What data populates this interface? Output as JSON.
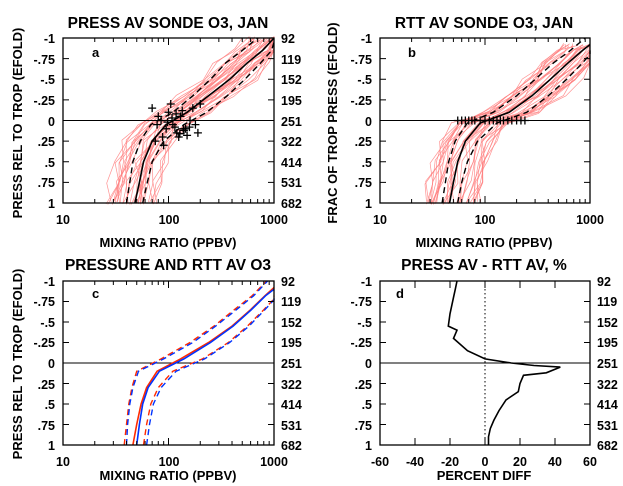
{
  "chart_data": [
    {
      "id": "a",
      "type": "line",
      "title": "PRESS AV SONDE O3, JAN",
      "panel_label": "a",
      "xlabel": "MIXING RATIO (PPBV)",
      "ylabel": "PRESS REL TO TROP (EFOLD)",
      "x_scale": "log",
      "xlim": [
        10,
        1000
      ],
      "ylim": [
        -1,
        1
      ],
      "y_reversed": true,
      "x_tick_labels": [
        "10",
        "100",
        "1000"
      ],
      "y_tick_labels": [
        "-1",
        "-.75",
        "-.5",
        "-.25",
        "0",
        ".25",
        ".5",
        ".75",
        "1"
      ],
      "right_tick_labels": [
        "92",
        "119",
        "152",
        "195",
        "251",
        "322",
        "414",
        "531",
        "682"
      ],
      "zero_line": true,
      "individual_profiles_color": "#ff8080",
      "series": [
        {
          "role": "mean",
          "style": "solid",
          "color": "#000000",
          "x": [
            48,
            53,
            58,
            70,
            95,
            150,
            240,
            380,
            560,
            780,
            1000
          ],
          "y": [
            1,
            0.75,
            0.5,
            0.25,
            0.05,
            -0.1,
            -0.3,
            -0.5,
            -0.7,
            -0.85,
            -1
          ]
        },
        {
          "role": "mean-minus-sd",
          "style": "dashed",
          "color": "#000000",
          "x": [
            40,
            43,
            46,
            54,
            68,
            110,
            170,
            250,
            350,
            500,
            700
          ],
          "y": [
            1,
            0.75,
            0.5,
            0.25,
            0.05,
            -0.1,
            -0.3,
            -0.5,
            -0.7,
            -0.85,
            -1
          ]
        },
        {
          "role": "mean-plus-sd",
          "style": "dashed",
          "color": "#000000",
          "x": [
            57,
            63,
            70,
            90,
            140,
            230,
            360,
            530,
            750,
            950,
            1000
          ],
          "y": [
            1,
            0.75,
            0.5,
            0.25,
            0.05,
            -0.1,
            -0.3,
            -0.5,
            -0.7,
            -0.85,
            -0.95
          ]
        }
      ],
      "tropopause_markers": {
        "symbol": "+",
        "x": [
          70,
          80,
          85,
          95,
          100,
          110,
          120,
          130,
          140,
          150,
          160,
          75,
          90,
          105,
          115,
          125,
          135,
          145,
          170,
          180,
          190,
          200,
          88,
          98,
          118,
          128,
          138,
          78,
          108,
          158
        ],
        "y": [
          -0.15,
          -0.05,
          0.0,
          0.1,
          -0.1,
          0.05,
          0.15,
          -0.05,
          0.12,
          0.18,
          0.0,
          0.25,
          0.3,
          -0.2,
          0.08,
          0.2,
          -0.12,
          0.1,
          -0.15,
          0.05,
          0.15,
          -0.2,
          0.2,
          0.02,
          -0.08,
          0.16,
          0.1,
          0.05,
          -0.03,
          0.08
        ]
      }
    },
    {
      "id": "b",
      "type": "line",
      "title": "RTT AV SONDE O3, JAN",
      "panel_label": "b",
      "xlabel": "MIXING RATIO (PPBV)",
      "ylabel": "FRAC OF TROP PRESS (EFOLD)",
      "x_scale": "log",
      "xlim": [
        10,
        1000
      ],
      "ylim": [
        -1,
        1
      ],
      "y_reversed": true,
      "x_tick_labels": [
        "10",
        "100",
        "1000"
      ],
      "y_tick_labels": [
        "-1",
        "-.75",
        "-.5",
        "-.25",
        "0",
        ".25",
        ".5",
        ".75",
        "1"
      ],
      "right_tick_labels": [
        "92",
        "119",
        "152",
        "195",
        "251",
        "322",
        "414",
        "531",
        "682"
      ],
      "zero_line": true,
      "individual_profiles_color": "#ff8080",
      "series": [
        {
          "role": "mean",
          "style": "solid",
          "color": "#000000",
          "x": [
            46,
            50,
            55,
            65,
            90,
            170,
            280,
            420,
            620,
            850,
            1000
          ],
          "y": [
            1,
            0.75,
            0.5,
            0.25,
            0.03,
            -0.1,
            -0.3,
            -0.5,
            -0.7,
            -0.85,
            -0.92
          ]
        },
        {
          "role": "mean-minus-sd",
          "style": "dashed",
          "color": "#000000",
          "x": [
            39,
            42,
            45,
            52,
            68,
            120,
            200,
            300,
            450,
            650,
            900
          ],
          "y": [
            1,
            0.75,
            0.5,
            0.25,
            0.03,
            -0.1,
            -0.3,
            -0.5,
            -0.7,
            -0.85,
            -1
          ]
        },
        {
          "role": "mean-plus-sd",
          "style": "dashed",
          "color": "#000000",
          "x": [
            55,
            60,
            68,
            85,
            130,
            250,
            400,
            600,
            850,
            1000,
            1000
          ],
          "y": [
            1,
            0.75,
            0.5,
            0.25,
            0.03,
            -0.1,
            -0.3,
            -0.5,
            -0.7,
            -0.8,
            -0.85
          ]
        }
      ],
      "tropopause_markers": {
        "symbol": "+",
        "x": [
          55,
          60,
          65,
          70,
          75,
          80,
          90,
          100,
          110,
          120,
          130,
          140,
          150,
          165,
          180,
          200,
          220,
          240
        ],
        "y": [
          0,
          0,
          0,
          0,
          0,
          0,
          0,
          0,
          0,
          0,
          0,
          0,
          0,
          0,
          0,
          0,
          0,
          0
        ]
      }
    },
    {
      "id": "c",
      "type": "line",
      "title": "PRESSURE AND RTT AV O3",
      "panel_label": "c",
      "xlabel": "MIXING RATIO (PPBV)",
      "ylabel": "PRESS REL TO TROP (EFOLD)",
      "x_scale": "log",
      "xlim": [
        10,
        1000
      ],
      "ylim": [
        -1,
        1
      ],
      "y_reversed": true,
      "x_tick_labels": [
        "10",
        "100",
        "1000"
      ],
      "y_tick_labels": [
        "-1",
        "-.75",
        "-.5",
        "-.25",
        "0",
        ".25",
        ".5",
        ".75",
        "1"
      ],
      "right_tick_labels": [
        "92",
        "119",
        "152",
        "195",
        "251",
        "322",
        "414",
        "531",
        "682"
      ],
      "zero_line": true,
      "series": [
        {
          "role": "rtt-mean",
          "style": "solid",
          "color": "#ff2a00",
          "x": [
            46,
            50,
            55,
            62,
            78,
            130,
            240,
            400,
            600,
            820,
            1000
          ],
          "y": [
            1,
            0.75,
            0.5,
            0.3,
            0.1,
            -0.05,
            -0.25,
            -0.45,
            -0.65,
            -0.82,
            -0.92
          ]
        },
        {
          "role": "rtt-minus-sd",
          "style": "dashed",
          "color": "#ff2a00",
          "x": [
            38,
            40,
            42,
            45,
            50,
            85,
            160,
            270,
            420,
            620,
            850
          ],
          "y": [
            1,
            0.75,
            0.5,
            0.3,
            0.1,
            -0.05,
            -0.25,
            -0.45,
            -0.65,
            -0.82,
            -1
          ]
        },
        {
          "role": "rtt-plus-sd",
          "style": "dashed",
          "color": "#ff2a00",
          "x": [
            58,
            62,
            68,
            80,
            110,
            210,
            370,
            560,
            800,
            1000,
            1000
          ],
          "y": [
            1,
            0.75,
            0.5,
            0.3,
            0.1,
            -0.05,
            -0.25,
            -0.45,
            -0.65,
            -0.78,
            -0.82
          ]
        },
        {
          "role": "press-mean",
          "style": "solid",
          "color": "#0033ff",
          "x": [
            50,
            53,
            57,
            64,
            82,
            140,
            250,
            410,
            610,
            830,
            1000
          ],
          "y": [
            1,
            0.75,
            0.5,
            0.3,
            0.1,
            -0.05,
            -0.25,
            -0.45,
            -0.65,
            -0.82,
            -0.9
          ]
        },
        {
          "role": "press-minus-sd",
          "style": "dashed",
          "color": "#0033ff",
          "x": [
            40,
            41,
            43,
            46,
            52,
            90,
            170,
            280,
            440,
            640,
            870
          ],
          "y": [
            1,
            0.75,
            0.5,
            0.3,
            0.1,
            -0.05,
            -0.25,
            -0.45,
            -0.65,
            -0.82,
            -1
          ]
        },
        {
          "role": "press-plus-sd",
          "style": "dashed",
          "color": "#0033ff",
          "x": [
            62,
            66,
            72,
            85,
            118,
            220,
            380,
            580,
            820,
            1000,
            1000
          ],
          "y": [
            1,
            0.75,
            0.5,
            0.3,
            0.1,
            -0.05,
            -0.25,
            -0.45,
            -0.65,
            -0.77,
            -0.8
          ]
        }
      ]
    },
    {
      "id": "d",
      "type": "line",
      "title": "PRESS AV - RTT AV, %",
      "panel_label": "d",
      "xlabel": "PERCENT DIFF",
      "ylabel": "",
      "x_scale": "linear",
      "xlim": [
        -60,
        60
      ],
      "ylim": [
        -1,
        1
      ],
      "y_reversed": true,
      "x_tick_labels": [
        "-60",
        "-40",
        "-20",
        "0",
        "20",
        "40",
        "60"
      ],
      "y_tick_labels": [
        "-1",
        "-.75",
        "-.5",
        "-.25",
        "0",
        ".25",
        ".5",
        ".75",
        "1"
      ],
      "right_tick_labels": [
        "92",
        "119",
        "152",
        "195",
        "251",
        "322",
        "414",
        "531",
        "682"
      ],
      "zero_line": true,
      "vertical_dotted_line_at": 0,
      "series": [
        {
          "role": "difference",
          "style": "solid",
          "color": "#000000",
          "x": [
            -16,
            -17,
            -18,
            -20,
            -21,
            -16,
            -18,
            -10,
            0,
            15,
            28,
            43,
            35,
            22,
            20,
            19,
            12,
            8,
            5,
            3,
            2,
            2
          ],
          "y": [
            -1,
            -0.9,
            -0.8,
            -0.6,
            -0.45,
            -0.4,
            -0.3,
            -0.15,
            -0.05,
            0,
            0.03,
            0.05,
            0.12,
            0.15,
            0.25,
            0.35,
            0.45,
            0.58,
            0.7,
            0.8,
            0.9,
            1
          ]
        }
      ]
    }
  ]
}
